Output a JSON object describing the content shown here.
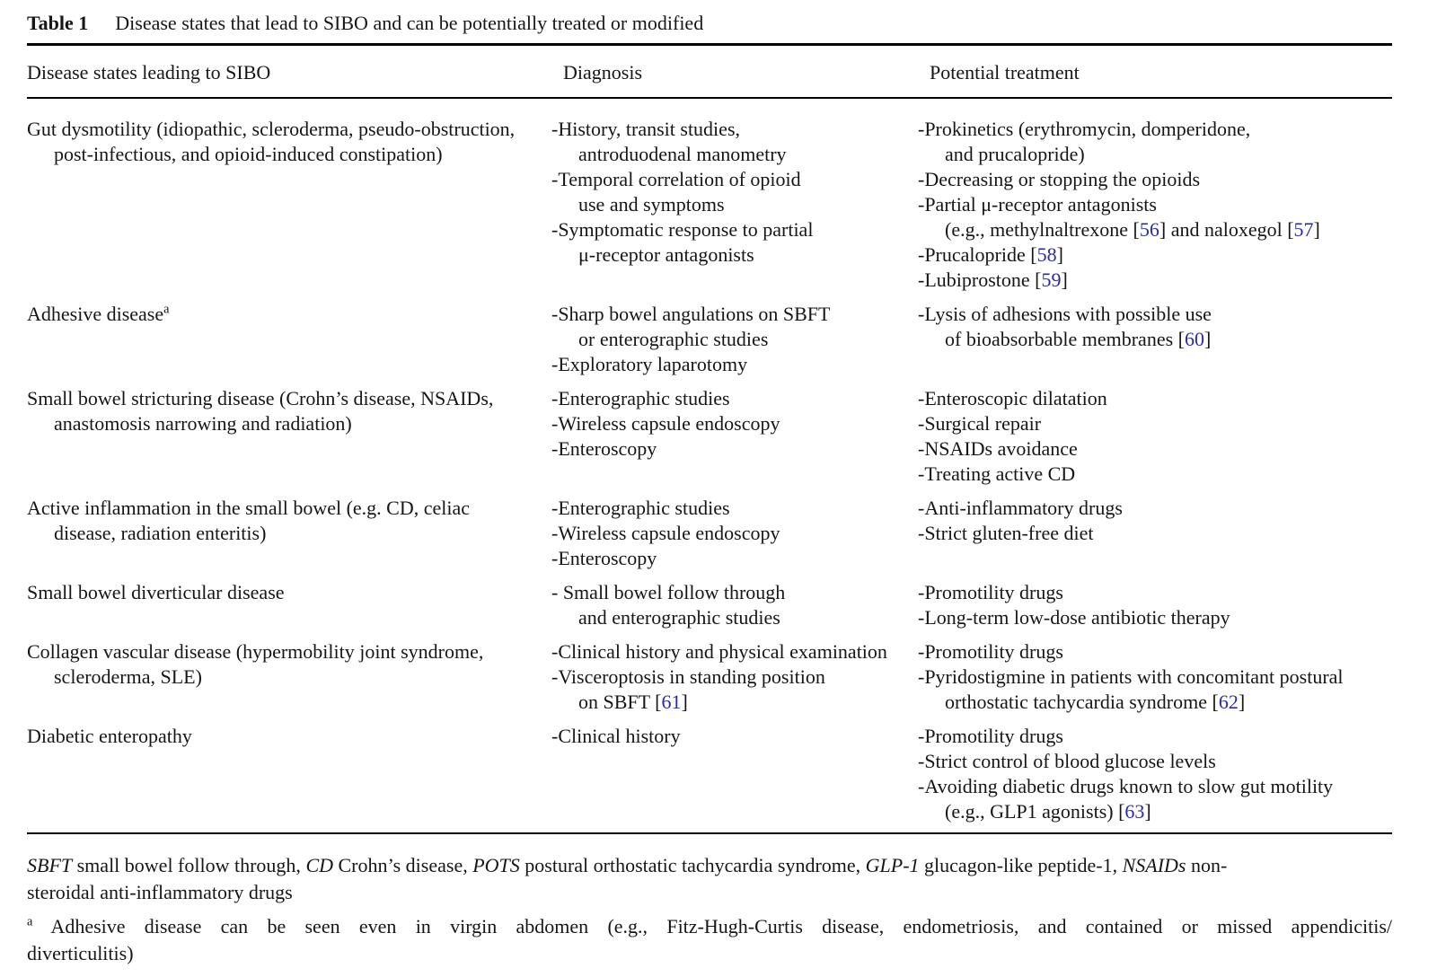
{
  "caption": {
    "label": "Table 1",
    "title": "Disease states that lead to SIBO and can be potentially treated or modified"
  },
  "columns": [
    "Disease states leading to SIBO",
    "Diagnosis",
    "Potential treatment"
  ],
  "rows": [
    {
      "disease": [
        "Gut dysmotility (idiopathic, scleroderma, pseudo-obstruction,",
        ">post-infectious, and opioid-induced constipation)"
      ],
      "diagnosis": [
        "-History, transit studies,",
        ">antroduodenal manometry",
        "-Temporal correlation of opioid",
        ">use and symptoms",
        "-Symptomatic response to partial",
        ">μ-receptor antagonists"
      ],
      "treatment": [
        "-Prokinetics (erythromycin, domperidone,",
        ">and prucalopride)",
        "-Decreasing or stopping the opioids",
        "-Partial μ-receptor antagonists",
        ">(e.g., methylnaltrexone [56] and naloxegol [57]",
        "-Prucalopride [58]",
        "-Lubiprostone [59]"
      ]
    },
    {
      "disease": [
        "Adhesive disease^a"
      ],
      "diagnosis": [
        "-Sharp bowel angulations on SBFT",
        ">or enterographic studies",
        "-Exploratory laparotomy"
      ],
      "treatment": [
        "-Lysis of adhesions with possible use",
        ">of bioabsorbable membranes [60]"
      ]
    },
    {
      "disease": [
        "Small bowel stricturing disease (Crohn’s disease, NSAIDs,",
        ">anastomosis narrowing and radiation)"
      ],
      "diagnosis": [
        "-Enterographic studies",
        "-Wireless capsule endoscopy",
        "-Enteroscopy"
      ],
      "treatment": [
        "-Enteroscopic dilatation",
        "-Surgical repair",
        "-NSAIDs avoidance",
        "-Treating active CD"
      ]
    },
    {
      "disease": [
        "Active inflammation in the small bowel (e.g. CD, celiac",
        ">disease, radiation enteritis)"
      ],
      "diagnosis": [
        "-Enterographic studies",
        "-Wireless capsule endoscopy",
        "-Enteroscopy"
      ],
      "treatment": [
        "-Anti-inflammatory drugs",
        "-Strict gluten-free diet"
      ]
    },
    {
      "disease": [
        "Small bowel diverticular disease"
      ],
      "diagnosis": [
        "- Small bowel follow through",
        ">and enterographic studies"
      ],
      "treatment": [
        "-Promotility drugs",
        "-Long-term low-dose antibiotic therapy"
      ]
    },
    {
      "disease": [
        "Collagen vascular disease (hypermobility joint syndrome,",
        ">scleroderma, SLE)"
      ],
      "diagnosis": [
        "-Clinical history and physical examination",
        "-Visceroptosis in standing position",
        ">on SBFT [61]"
      ],
      "treatment": [
        "-Promotility drugs",
        "-Pyridostigmine in patients with concomitant postural",
        ">orthostatic tachycardia syndrome [62]"
      ]
    },
    {
      "disease": [
        "Diabetic enteropathy"
      ],
      "diagnosis": [
        "-Clinical history"
      ],
      "treatment": [
        "-Promotility drugs",
        "-Strict control of blood glucose levels",
        "-Avoiding diabetic drugs known to slow gut motility",
        ">(e.g., GLP1 agonists) [63]"
      ]
    }
  ],
  "footnotes": {
    "abbreviations": [
      "*SBFT* small bowel follow through, *CD* Crohn’s disease, *POTS* postural orthostatic tachycardia syndrome, *GLP-1* glucagon-like peptide-1, *NSAIDs* non-",
      "steroidal anti-inflammatory drugs"
    ],
    "note_a": [
      "=^a Adhesive disease can be seen even in virgin abdomen (e.g., Fitz-Hugh-Curtis disease, endometriosis, and contained or missed appendicitis/",
      "diverticulitis)"
    ]
  },
  "colors": {
    "background": "#ffffff",
    "text": "#161616",
    "rule": "#000000",
    "citation_link": "#2b2ba0"
  }
}
